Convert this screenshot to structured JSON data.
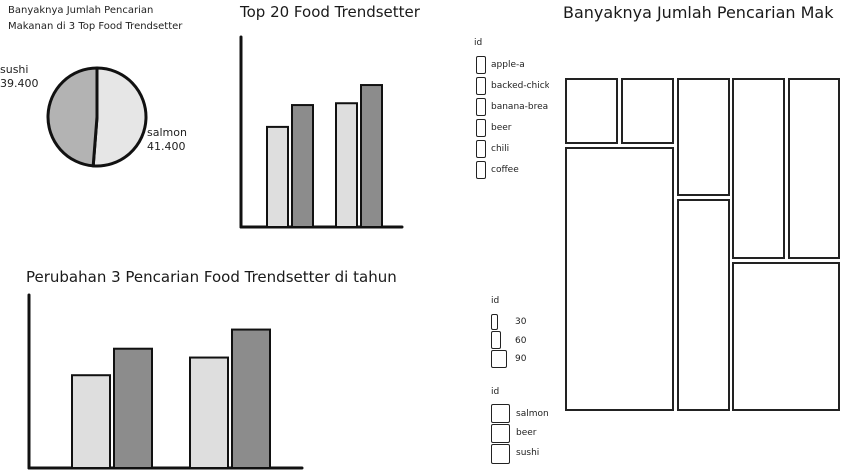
{
  "pie": {
    "title_line1": "Banyaknya Jumlah Pencarian",
    "title_line2": "Makanan di 3 Top Food Trendsetter",
    "colors": {
      "sushi": "#b3b3b3",
      "salmon": "#e6e6e6",
      "stroke": "#111111"
    }
  },
  "bar_top": {
    "title": "Top 20 Food Trendsetter",
    "colors": {
      "light": "#dedede",
      "dark": "#8c8c8c"
    }
  },
  "bar_bottom": {
    "title": "Perubahan 3 Pencarian Food Trendsetter di tahun",
    "colors": {
      "light": "#dedede",
      "dark": "#8c8c8c"
    }
  },
  "treemap": {
    "title": "Banyaknya Jumlah Pencarian Mak"
  },
  "legend_food": {
    "header": "id",
    "items": [
      "apple-a",
      "backed-chick",
      "banana-brea",
      "beer",
      "chili",
      "coffee"
    ]
  },
  "legend_size": {
    "header": "id",
    "items": [
      "30",
      "60",
      "90"
    ]
  },
  "legend_top3": {
    "header": "id",
    "items": [
      "salmon",
      "beer",
      "sushi"
    ]
  },
  "chart_data": [
    {
      "type": "pie",
      "title": "Banyaknya Jumlah Pencarian Makanan di 3 Top Food Trendsetter",
      "categories": [
        "sushi",
        "salmon"
      ],
      "values": [
        39400,
        41400
      ],
      "labels": [
        "39.400",
        "41.400"
      ]
    },
    {
      "type": "bar",
      "title": "Top 20 Food Trendsetter",
      "categories": [
        "",
        ""
      ],
      "series": [
        {
          "values": [
            55,
            67
          ]
        },
        {
          "values": [
            68,
            78
          ]
        }
      ],
      "ylim": [
        0,
        100
      ]
    },
    {
      "type": "bar",
      "title": "Perubahan 3 Pencarian Food Trendsetter di tahun",
      "categories": [
        "",
        ""
      ],
      "series": [
        {
          "values": [
            63,
            81
          ]
        },
        {
          "values": [
            75,
            94
          ]
        }
      ],
      "ylim": [
        0,
        110
      ]
    },
    {
      "type": "heatmap",
      "title": "Banyaknya Jumlah Pencarian Mak",
      "values": [
        4,
        4,
        8,
        11,
        11,
        25,
        14,
        20,
        26
      ]
    }
  ]
}
